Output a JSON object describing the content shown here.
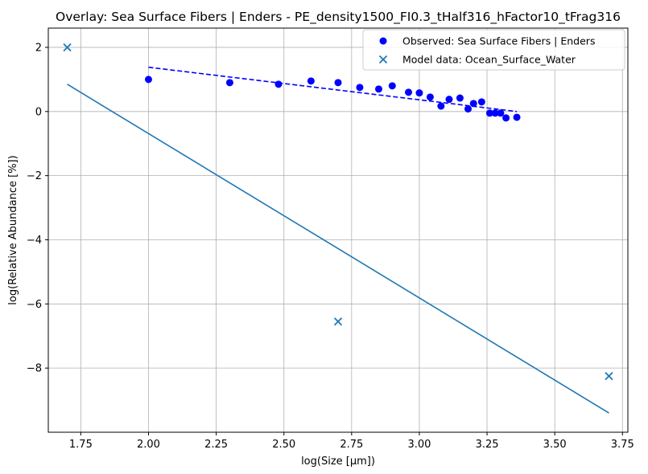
{
  "chart_data": {
    "type": "scatter",
    "title": "Overlay: Sea Surface Fibers | Enders - PE_density1500_FI0.3_tHalf316_hFactor10_tFrag316",
    "xlabel": "log(Size [µm])",
    "ylabel": "log(Relative Abundance [%])",
    "xlim": [
      1.63,
      3.77
    ],
    "ylim": [
      -10.0,
      2.6
    ],
    "xticks": [
      1.75,
      2.0,
      2.25,
      2.5,
      2.75,
      3.0,
      3.25,
      3.5,
      3.75
    ],
    "xtick_labels": [
      "1.75",
      "2.00",
      "2.25",
      "2.50",
      "2.75",
      "3.00",
      "3.25",
      "3.50",
      "3.75"
    ],
    "yticks": [
      -8,
      -6,
      -4,
      -2,
      0,
      2
    ],
    "ytick_labels": [
      "−8",
      "−6",
      "−4",
      "−2",
      "0",
      "2"
    ],
    "grid": true,
    "legend_position": "top-right",
    "series": [
      {
        "name": "Observed: Sea Surface Fibers | Enders",
        "kind": "scatter",
        "marker": "circle",
        "color": "#0000ff",
        "x": [
          2.0,
          2.3,
          2.48,
          2.6,
          2.7,
          2.78,
          2.85,
          2.9,
          2.96,
          3.0,
          3.04,
          3.08,
          3.11,
          3.15,
          3.18,
          3.2,
          3.23,
          3.26,
          3.28,
          3.3,
          3.32,
          3.36
        ],
        "y": [
          1.0,
          0.9,
          0.85,
          0.95,
          0.9,
          0.75,
          0.7,
          0.8,
          0.6,
          0.58,
          0.45,
          0.17,
          0.38,
          0.42,
          0.08,
          0.25,
          0.3,
          -0.05,
          -0.05,
          -0.05,
          -0.2,
          -0.18
        ]
      },
      {
        "kind": "line",
        "style": "dashed",
        "color": "#0000ff",
        "x": [
          2.0,
          3.36
        ],
        "y": [
          1.38,
          0.0
        ]
      },
      {
        "name": "Model data: Ocean_Surface_Water",
        "kind": "scatter",
        "marker": "x",
        "color": "#1f77b4",
        "x": [
          1.7,
          2.7,
          3.7
        ],
        "y": [
          2.0,
          -6.55,
          -8.25
        ]
      },
      {
        "kind": "line",
        "style": "solid",
        "color": "#1f77b4",
        "x": [
          1.7,
          3.7
        ],
        "y": [
          0.85,
          -9.4
        ]
      }
    ]
  }
}
